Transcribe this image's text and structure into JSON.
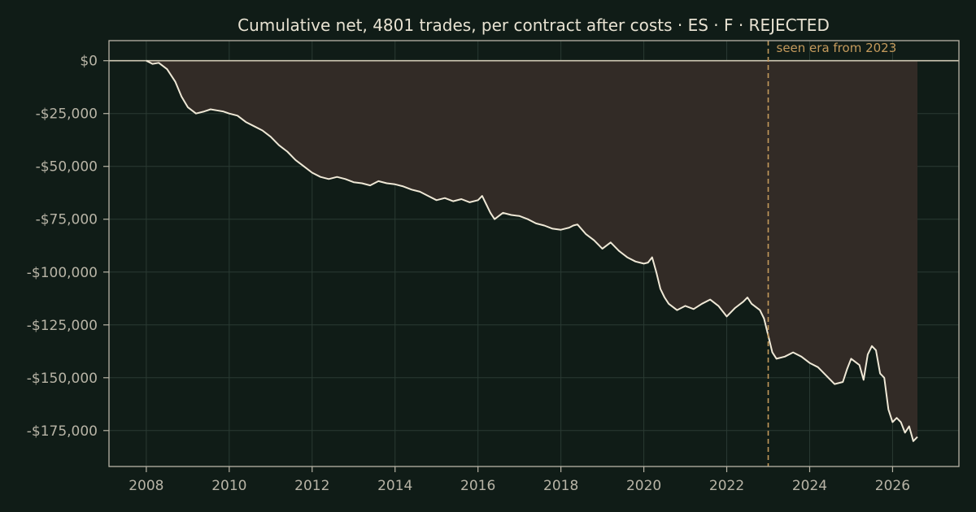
{
  "chart_data": {
    "type": "area",
    "title": "Cumulative net, 4801 trades, per contract after costs  ·  ES · F · REJECTED",
    "xlabel": "",
    "ylabel": "",
    "xlim": [
      2007.1,
      2027.6
    ],
    "ylim": [
      -192000,
      9500
    ],
    "x_ticks": [
      2008,
      2010,
      2012,
      2014,
      2016,
      2018,
      2020,
      2022,
      2024,
      2026
    ],
    "x_tick_labels": [
      "2008",
      "2010",
      "2012",
      "2014",
      "2016",
      "2018",
      "2020",
      "2022",
      "2024",
      "2026"
    ],
    "y_ticks": [
      0,
      -25000,
      -50000,
      -75000,
      -100000,
      -125000,
      -150000,
      -175000
    ],
    "y_tick_labels": [
      "$0",
      "-$25,000",
      "-$50,000",
      "-$75,000",
      "-$100,000",
      "-$125,000",
      "-$150,000",
      "-$175,000"
    ],
    "grid": true,
    "colors": {
      "line": "#efe8d6",
      "fill": "#322b26",
      "zero_line": "#cfc8b4",
      "axes": "#b8b4a6",
      "annotation": "#c49a5c"
    },
    "annotation": {
      "x": 2023.0,
      "text": "seen era from 2023"
    },
    "series": [
      {
        "x": [
          2008.0,
          2008.15,
          2008.3,
          2008.5,
          2008.7,
          2008.85,
          2009.0,
          2009.2,
          2009.4,
          2009.55,
          2009.7,
          2009.85,
          2010.0,
          2010.2,
          2010.4,
          2010.6,
          2010.8,
          2011.0,
          2011.2,
          2011.4,
          2011.6,
          2011.8,
          2012.0,
          2012.2,
          2012.4,
          2012.6,
          2012.8,
          2013.0,
          2013.2,
          2013.4,
          2013.6,
          2013.8,
          2014.0,
          2014.2,
          2014.4,
          2014.6,
          2014.8,
          2015.0,
          2015.2,
          2015.4,
          2015.6,
          2015.8,
          2016.0,
          2016.1,
          2016.2,
          2016.3,
          2016.4,
          2016.6,
          2016.8,
          2017.0,
          2017.2,
          2017.4,
          2017.6,
          2017.8,
          2018.0,
          2018.2,
          2018.3,
          2018.4,
          2018.6,
          2018.8,
          2019.0,
          2019.2,
          2019.4,
          2019.6,
          2019.8,
          2020.0,
          2020.1,
          2020.2,
          2020.3,
          2020.4,
          2020.5,
          2020.6,
          2020.8,
          2021.0,
          2021.2,
          2021.4,
          2021.6,
          2021.8,
          2022.0,
          2022.2,
          2022.4,
          2022.5,
          2022.6,
          2022.8,
          2022.9,
          2023.0,
          2023.1,
          2023.2,
          2023.4,
          2023.6,
          2023.8,
          2024.0,
          2024.2,
          2024.4,
          2024.6,
          2024.8,
          2024.9,
          2025.0,
          2025.2,
          2025.3,
          2025.4,
          2025.5,
          2025.6,
          2025.7,
          2025.8,
          2025.9,
          2026.0,
          2026.1,
          2026.2,
          2026.3,
          2026.4,
          2026.5,
          2026.6
        ],
        "values": [
          0,
          -1500,
          -1000,
          -4000,
          -10000,
          -17000,
          -22000,
          -25000,
          -24000,
          -23000,
          -23500,
          -24000,
          -25000,
          -26000,
          -29000,
          -31000,
          -33000,
          -36000,
          -40000,
          -43000,
          -47000,
          -50000,
          -53000,
          -55000,
          -56000,
          -55000,
          -56000,
          -57500,
          -58000,
          -59000,
          -57000,
          -58000,
          -58500,
          -59500,
          -61000,
          -62000,
          -64000,
          -66000,
          -65000,
          -66500,
          -65500,
          -67000,
          -66000,
          -64000,
          -68000,
          -72000,
          -75000,
          -72000,
          -73000,
          -73500,
          -75000,
          -77000,
          -78000,
          -79500,
          -80000,
          -79000,
          -78000,
          -77500,
          -82000,
          -85000,
          -89000,
          -86000,
          -90000,
          -93000,
          -95000,
          -96000,
          -95500,
          -93000,
          -100000,
          -108000,
          -112000,
          -115000,
          -118000,
          -116000,
          -117500,
          -115000,
          -113000,
          -116000,
          -121000,
          -117000,
          -114000,
          -112000,
          -115000,
          -118000,
          -122000,
          -130000,
          -138000,
          -141000,
          -140000,
          -138000,
          -140000,
          -143000,
          -145000,
          -149000,
          -153000,
          -152000,
          -146000,
          -141000,
          -144000,
          -151000,
          -139000,
          -135000,
          -137000,
          -148000,
          -150000,
          -165000,
          -171000,
          -169000,
          -171000,
          -176000,
          -173000,
          -180000,
          -178000
        ]
      }
    ]
  }
}
